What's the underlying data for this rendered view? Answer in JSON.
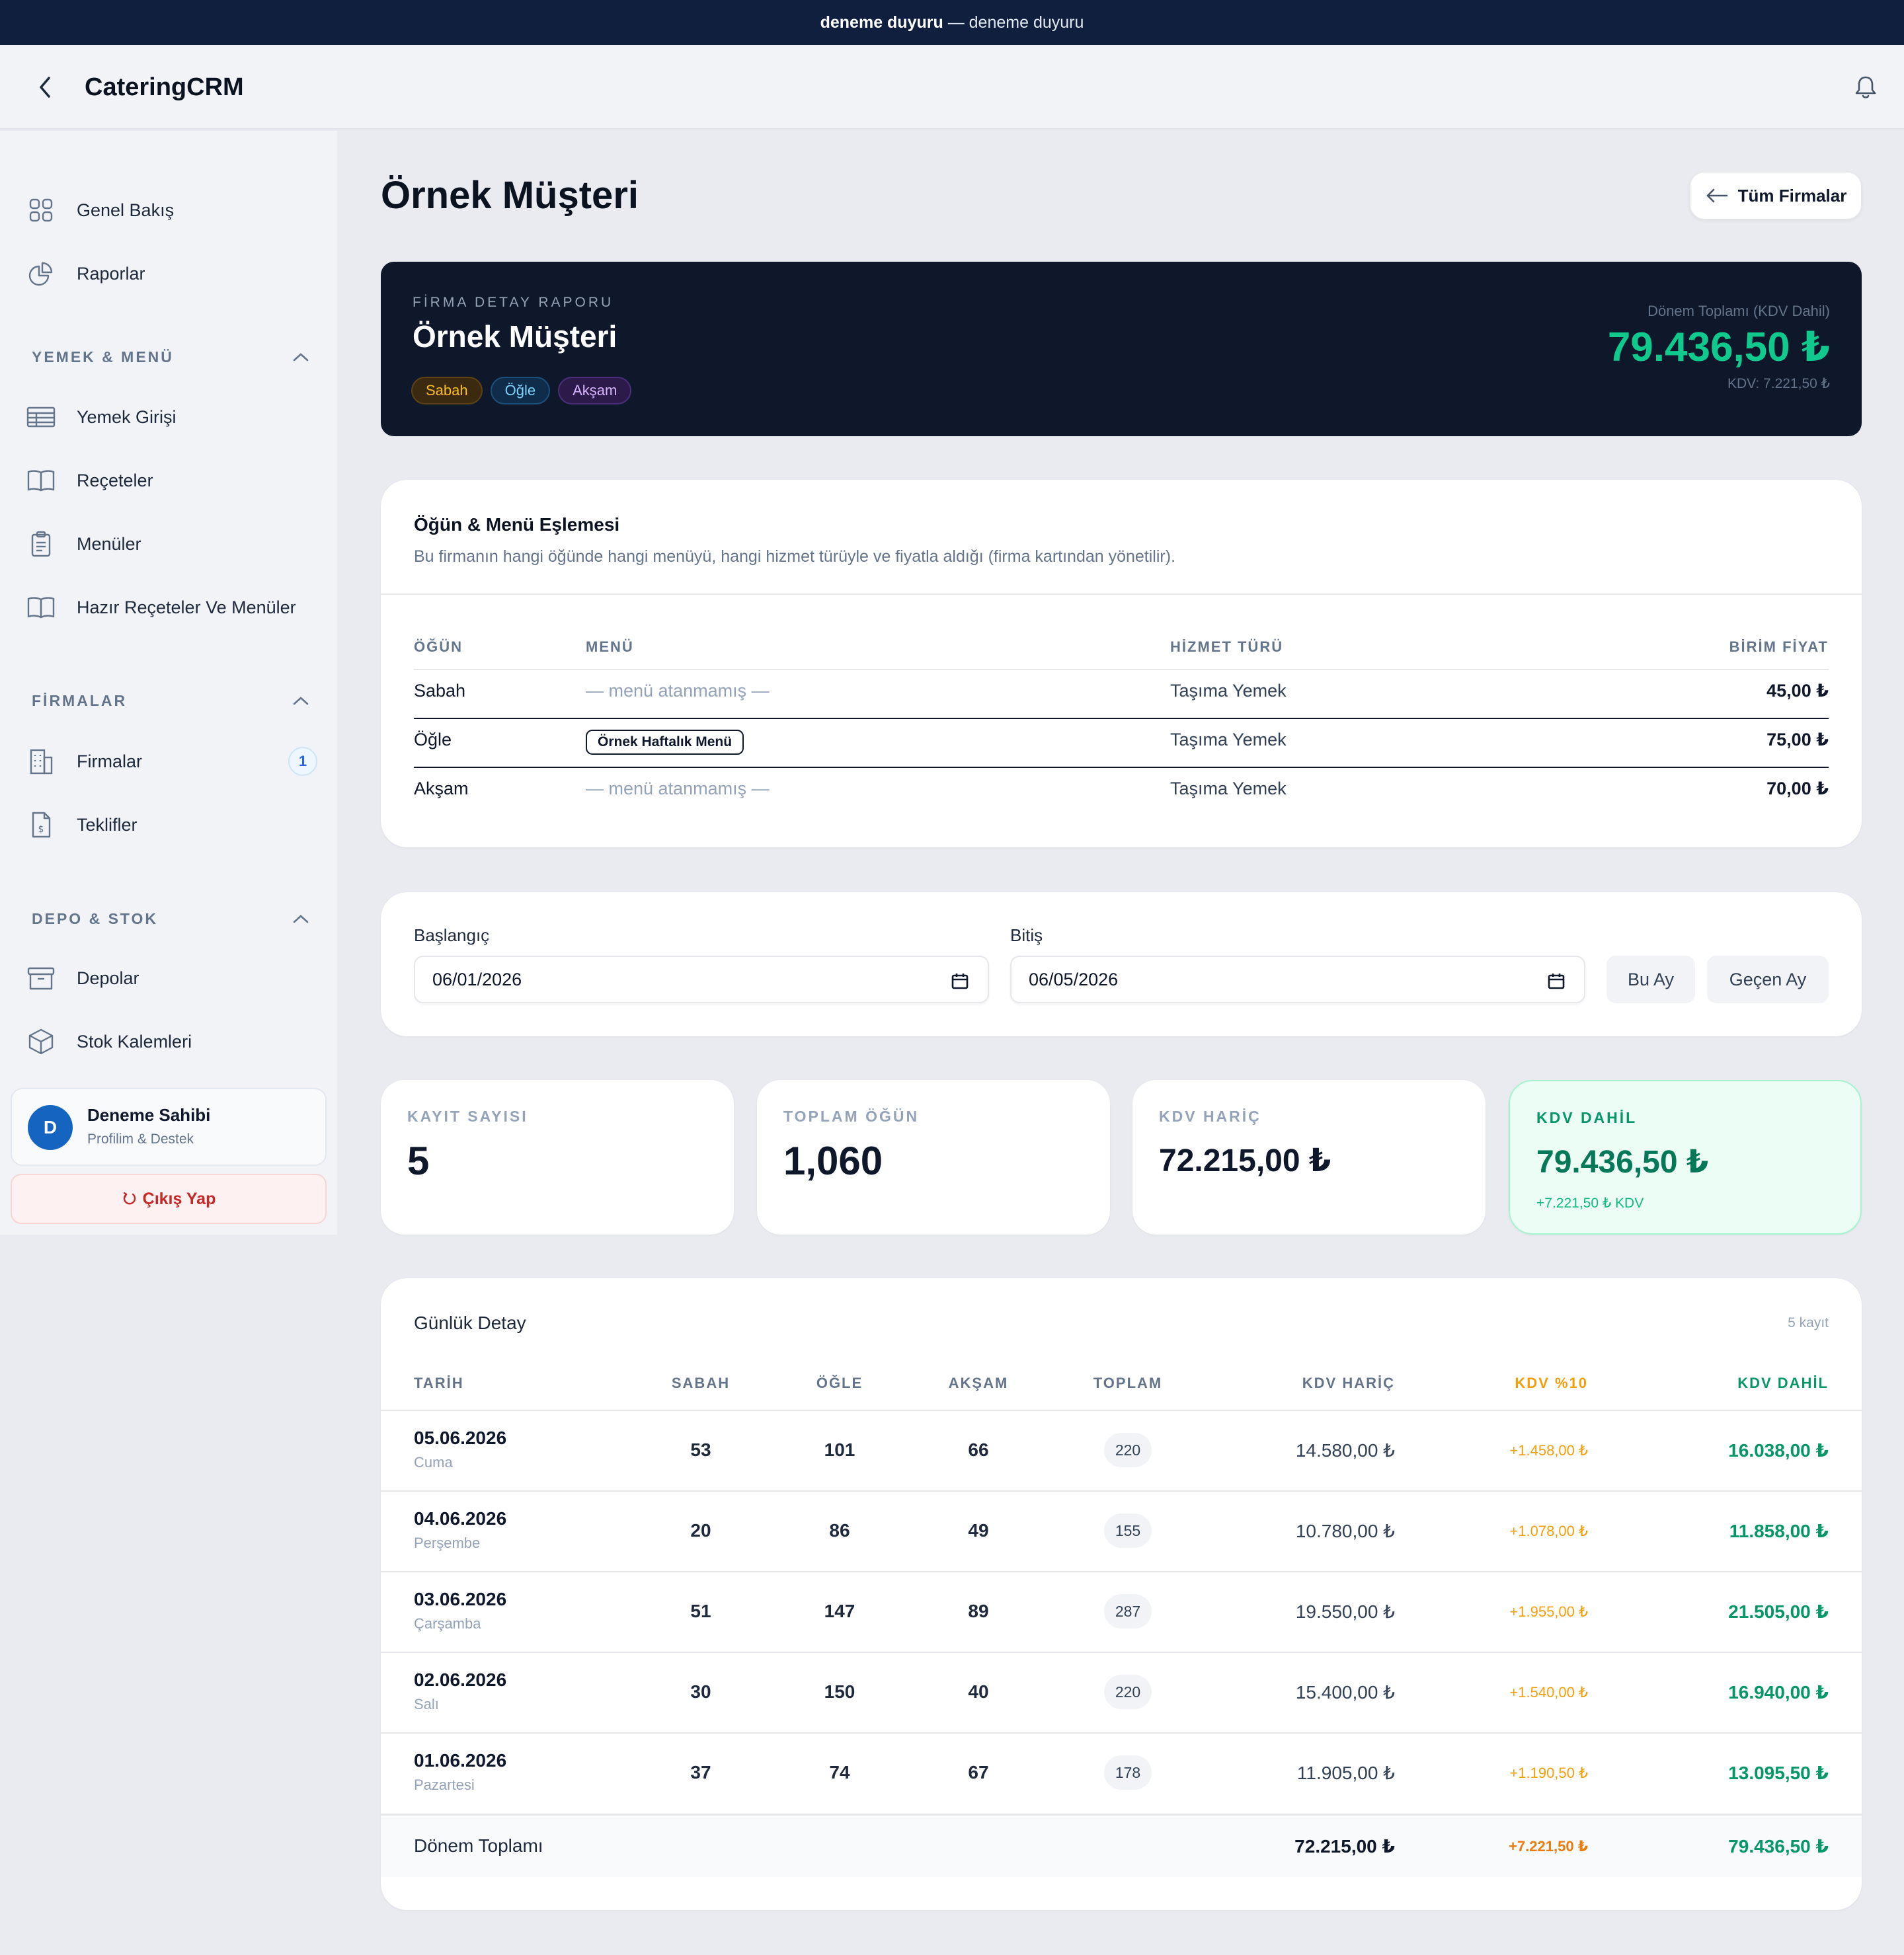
{
  "announcement": {
    "bold": "deneme duyuru",
    "rest": " — deneme duyuru"
  },
  "app": {
    "title": "CateringCRM"
  },
  "sidebar": {
    "items_top": [
      {
        "label": "Genel Bakış",
        "icon": "grid-icon"
      },
      {
        "label": "Raporlar",
        "icon": "pie-chart-icon"
      }
    ],
    "sections": [
      {
        "title": "YEMEK & MENÜ",
        "items": [
          {
            "label": "Yemek Girişi",
            "icon": "table-icon"
          },
          {
            "label": "Reçeteler",
            "icon": "book-icon"
          },
          {
            "label": "Menüler",
            "icon": "clipboard-icon"
          },
          {
            "label": "Hazır Reçeteler Ve Menüler",
            "icon": "book-icon"
          }
        ]
      },
      {
        "title": "FİRMALAR",
        "items": [
          {
            "label": "Firmalar",
            "icon": "building-icon",
            "badge": "1"
          },
          {
            "label": "Teklifler",
            "icon": "invoice-icon"
          }
        ]
      },
      {
        "title": "DEPO & STOK",
        "items": [
          {
            "label": "Depolar",
            "icon": "archive-icon"
          },
          {
            "label": "Stok Kalemleri",
            "icon": "cube-icon"
          }
        ]
      }
    ],
    "user": {
      "initial": "D",
      "name": "Deneme Sahibi",
      "sub": "Profilim & Destek"
    },
    "logout_label": "Çıkış Yap"
  },
  "page": {
    "title": "Örnek Müşteri",
    "all_firms_label": "Tüm Firmalar"
  },
  "hero": {
    "kicker": "FİRMA DETAY RAPORU",
    "name": "Örnek Müşteri",
    "tags": [
      "Sabah",
      "Öğle",
      "Akşam"
    ],
    "total_label": "Dönem Toplamı (KDV Dahil)",
    "total": "79.436,50 ₺",
    "kdv": "KDV: 7.221,50 ₺"
  },
  "mapping": {
    "title": "Öğün & Menü Eşlemesi",
    "desc": "Bu firmanın hangi öğünde hangi menüyü, hangi hizmet türüyle ve fiyatla aldığı (firma kartından yönetilir).",
    "headers": [
      "ÖĞÜN",
      "MENÜ",
      "HİZMET TÜRÜ",
      "BİRİM FİYAT"
    ],
    "rows": [
      {
        "meal": "Sabah",
        "menu": "— menü atanmamış —",
        "menu_assigned": false,
        "service": "Taşıma Yemek",
        "price": "45,00 ₺"
      },
      {
        "meal": "Öğle",
        "menu": "Örnek Haftalık Menü",
        "menu_assigned": true,
        "service": "Taşıma Yemek",
        "price": "75,00 ₺"
      },
      {
        "meal": "Akşam",
        "menu": "— menü atanmamış —",
        "menu_assigned": false,
        "service": "Taşıma Yemek",
        "price": "70,00 ₺"
      }
    ]
  },
  "filters": {
    "start_label": "Başlangıç",
    "start_value": "06/01/2026",
    "end_label": "Bitiş",
    "end_value": "06/05/2026",
    "this_month": "Bu Ay",
    "last_month": "Geçen Ay"
  },
  "stats": [
    {
      "label": "KAYIT SAYISI",
      "value": "5"
    },
    {
      "label": "TOPLAM ÖĞÜN",
      "value": "1,060"
    },
    {
      "label": "KDV HARİÇ",
      "value": "72.215,00 ₺"
    },
    {
      "label": "KDV DAHİL",
      "value": "79.436,50 ₺",
      "sub": "+7.221,50 ₺ KDV"
    }
  ],
  "daily": {
    "title": "Günlük Detay",
    "count": "5 kayıt",
    "headers": [
      "TARİH",
      "SABAH",
      "ÖĞLE",
      "AKŞAM",
      "TOPLAM",
      "KDV HARİÇ",
      "KDV %10",
      "KDV DAHİL"
    ],
    "rows": [
      {
        "date": "05.06.2026",
        "day": "Cuma",
        "sabah": "53",
        "ogle": "101",
        "aksam": "66",
        "total": "220",
        "ex": "14.580,00 ₺",
        "kdv": "+1.458,00 ₺",
        "inc": "16.038,00 ₺"
      },
      {
        "date": "04.06.2026",
        "day": "Perşembe",
        "sabah": "20",
        "ogle": "86",
        "aksam": "49",
        "total": "155",
        "ex": "10.780,00 ₺",
        "kdv": "+1.078,00 ₺",
        "inc": "11.858,00 ₺"
      },
      {
        "date": "03.06.2026",
        "day": "Çarşamba",
        "sabah": "51",
        "ogle": "147",
        "aksam": "89",
        "total": "287",
        "ex": "19.550,00 ₺",
        "kdv": "+1.955,00 ₺",
        "inc": "21.505,00 ₺"
      },
      {
        "date": "02.06.2026",
        "day": "Salı",
        "sabah": "30",
        "ogle": "150",
        "aksam": "40",
        "total": "220",
        "ex": "15.400,00 ₺",
        "kdv": "+1.540,00 ₺",
        "inc": "16.940,00 ₺"
      },
      {
        "date": "01.06.2026",
        "day": "Pazartesi",
        "sabah": "37",
        "ogle": "74",
        "aksam": "67",
        "total": "178",
        "ex": "11.905,00 ₺",
        "kdv": "+1.190,50 ₺",
        "inc": "13.095,50 ₺"
      }
    ],
    "footer": {
      "label": "Dönem Toplamı",
      "ex": "72.215,00 ₺",
      "kdv": "+7.221,50 ₺",
      "inc": "79.436,50 ₺"
    }
  },
  "colors": {
    "accent_green": "#10c98d",
    "kdv_orange": "#f59e0b",
    "dark": "#0f172a"
  }
}
